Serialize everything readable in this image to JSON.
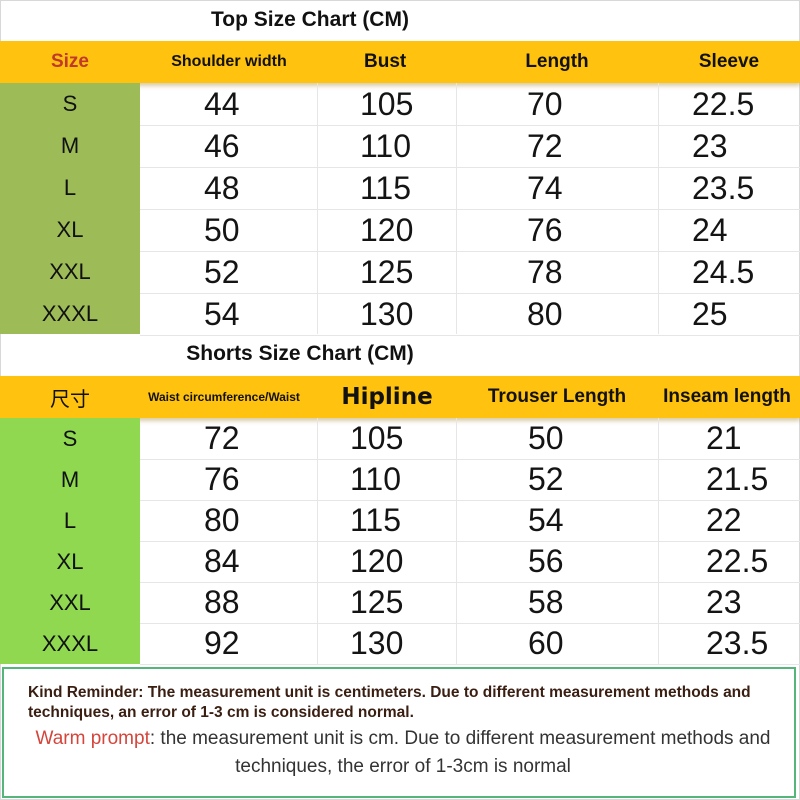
{
  "top": {
    "title": "Top Size Chart (CM)",
    "headers": [
      "Size",
      "Shoulder width",
      "Bust",
      "Length",
      "Sleeve"
    ],
    "rows": [
      {
        "size": "S",
        "values": [
          "44",
          "105",
          "70",
          "22.5"
        ]
      },
      {
        "size": "M",
        "values": [
          "46",
          "110",
          "72",
          "23"
        ]
      },
      {
        "size": "L",
        "values": [
          "48",
          "115",
          "74",
          "23.5"
        ]
      },
      {
        "size": "XL",
        "values": [
          "50",
          "120",
          "76",
          "24"
        ]
      },
      {
        "size": "XXL",
        "values": [
          "52",
          "125",
          "78",
          "24.5"
        ]
      },
      {
        "size": "XXXL",
        "values": [
          "54",
          "130",
          "80",
          "25"
        ]
      }
    ]
  },
  "shorts": {
    "title": "Shorts Size Chart (CM)",
    "headers": [
      "尺寸",
      "Waist circumference/Waist",
      "Hipline",
      "Trouser Length",
      "Inseam length"
    ],
    "rows": [
      {
        "size": "S",
        "values": [
          "72",
          "105",
          "50",
          "21"
        ]
      },
      {
        "size": "M",
        "values": [
          "76",
          "110",
          "52",
          "21.5"
        ]
      },
      {
        "size": "L",
        "values": [
          "80",
          "115",
          "54",
          "22"
        ]
      },
      {
        "size": "XL",
        "values": [
          "84",
          "120",
          "56",
          "22.5"
        ]
      },
      {
        "size": "XXL",
        "values": [
          "88",
          "125",
          "58",
          "23"
        ]
      },
      {
        "size": "XXXL",
        "values": [
          "92",
          "130",
          "60",
          "23.5"
        ]
      }
    ]
  },
  "notes": {
    "kind": "Kind Reminder: The measurement unit is centimeters. Due to different measurement methods and techniques, an error of 1-3 cm is considered normal.",
    "warm_label": "Warm prompt",
    "warm_text": ": the measurement unit is cm. Due to different measurement methods and techniques, the error of 1-3cm is normal"
  },
  "colors": {
    "header_bg": "#ffc20e",
    "top_size_col": "#9dbb57",
    "shorts_size_col": "#8fd84f",
    "size_header_text": "#c0392b",
    "note_border": "#55b57a",
    "warm_label": "#d4453b"
  }
}
